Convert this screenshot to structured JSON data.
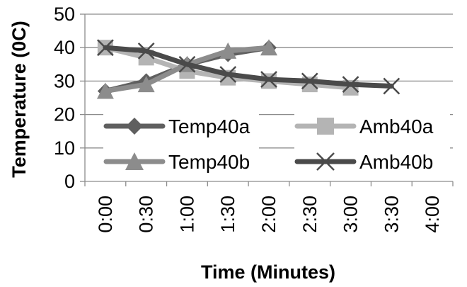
{
  "chart_data": {
    "type": "line",
    "title": "",
    "xlabel": "Time  (Minutes)",
    "ylabel": "Temperature (0C)",
    "categories": [
      "0:00",
      "0:30",
      "1:00",
      "1:30",
      "2:00",
      "2:30",
      "3:00",
      "3:30",
      "4:00"
    ],
    "ylim": [
      0,
      50
    ],
    "yticks": [
      "0",
      "10",
      "20",
      "30",
      "40",
      "50"
    ],
    "grid": true,
    "legend_position": "inside-lower",
    "series": [
      {
        "name": "Temp40a",
        "color": "#5f5f5f",
        "marker": "diamond",
        "values": [
          27,
          30,
          35,
          38,
          40,
          null,
          null,
          null,
          null
        ]
      },
      {
        "name": "Amb40a",
        "color": "#b4b4b4",
        "marker": "square",
        "values": [
          40,
          37,
          33,
          31,
          30,
          29,
          28,
          null,
          null
        ]
      },
      {
        "name": "Temp40b",
        "color": "#8c8c8c",
        "marker": "triangle",
        "values": [
          27,
          29,
          35,
          39,
          40,
          null,
          null,
          null,
          null
        ]
      },
      {
        "name": "Amb40b",
        "color": "#4a4a4a",
        "marker": "x",
        "values": [
          40,
          39,
          35,
          32,
          30.5,
          30,
          29,
          28.5,
          null
        ]
      }
    ]
  }
}
